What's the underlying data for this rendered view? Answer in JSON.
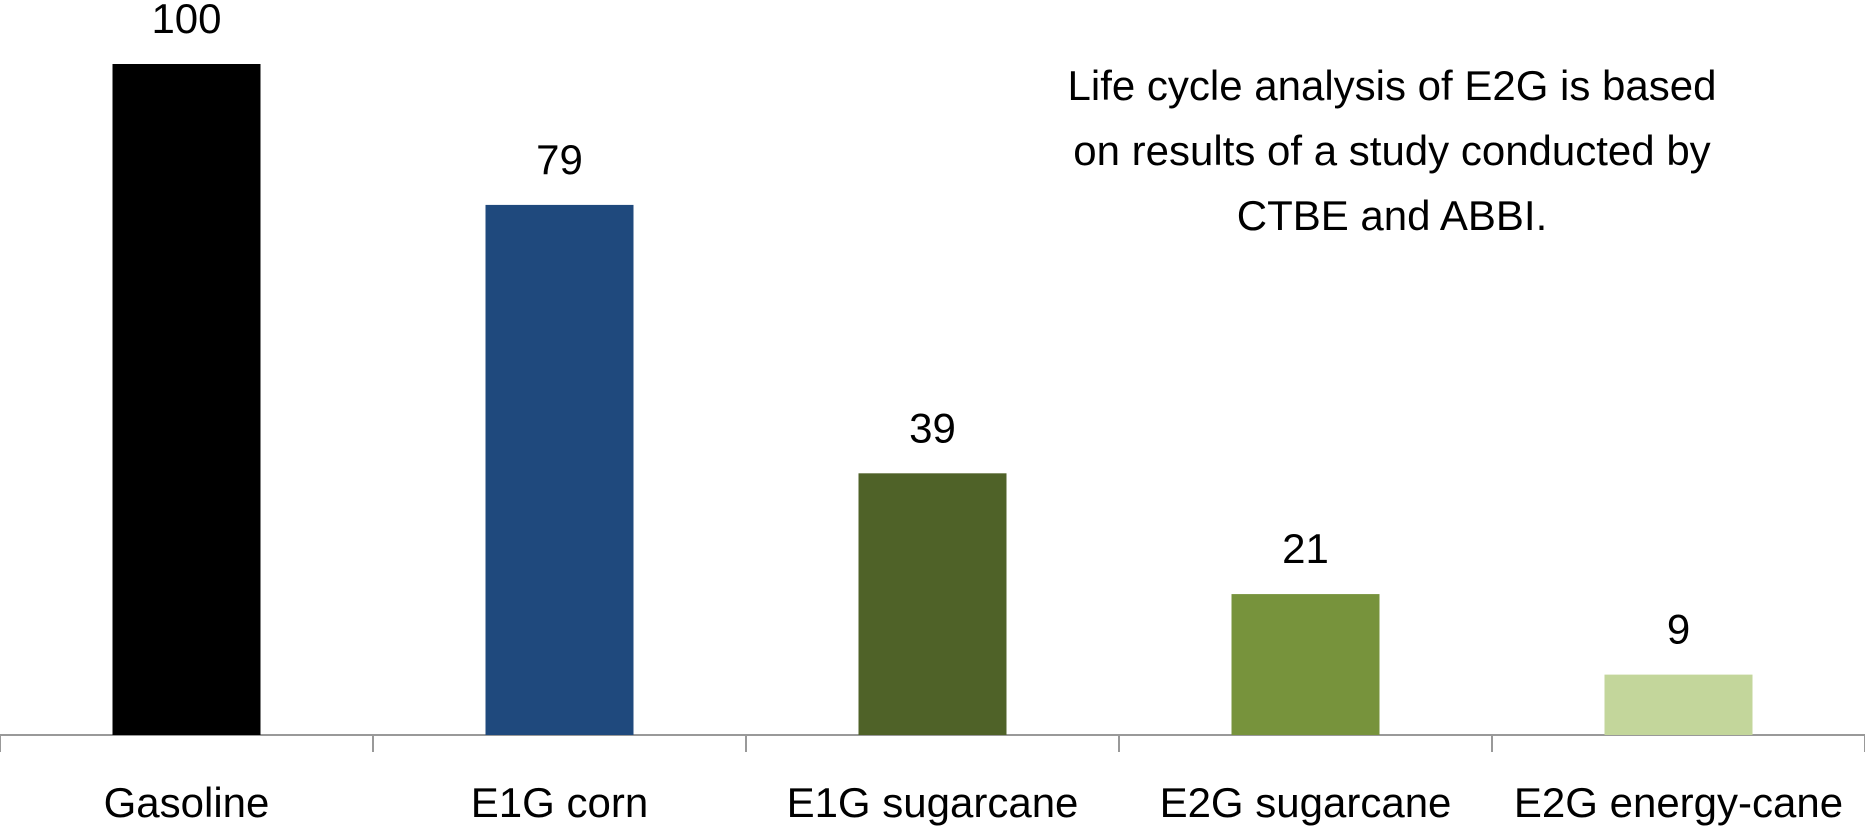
{
  "chart_data": {
    "type": "bar",
    "categories": [
      "Gasoline",
      "E1G corn",
      "E1G sugarcane",
      "E2G sugarcane",
      "E2G energy-cane"
    ],
    "values": [
      100,
      79,
      39,
      21,
      9
    ],
    "colors": [
      "#000000",
      "#1f497d",
      "#4f6228",
      "#77933c",
      "#c3d69b"
    ],
    "annotation": [
      "Life cycle analysis of E2G is based",
      "on results of a study conducted by",
      "CTBE and ABBI."
    ]
  }
}
